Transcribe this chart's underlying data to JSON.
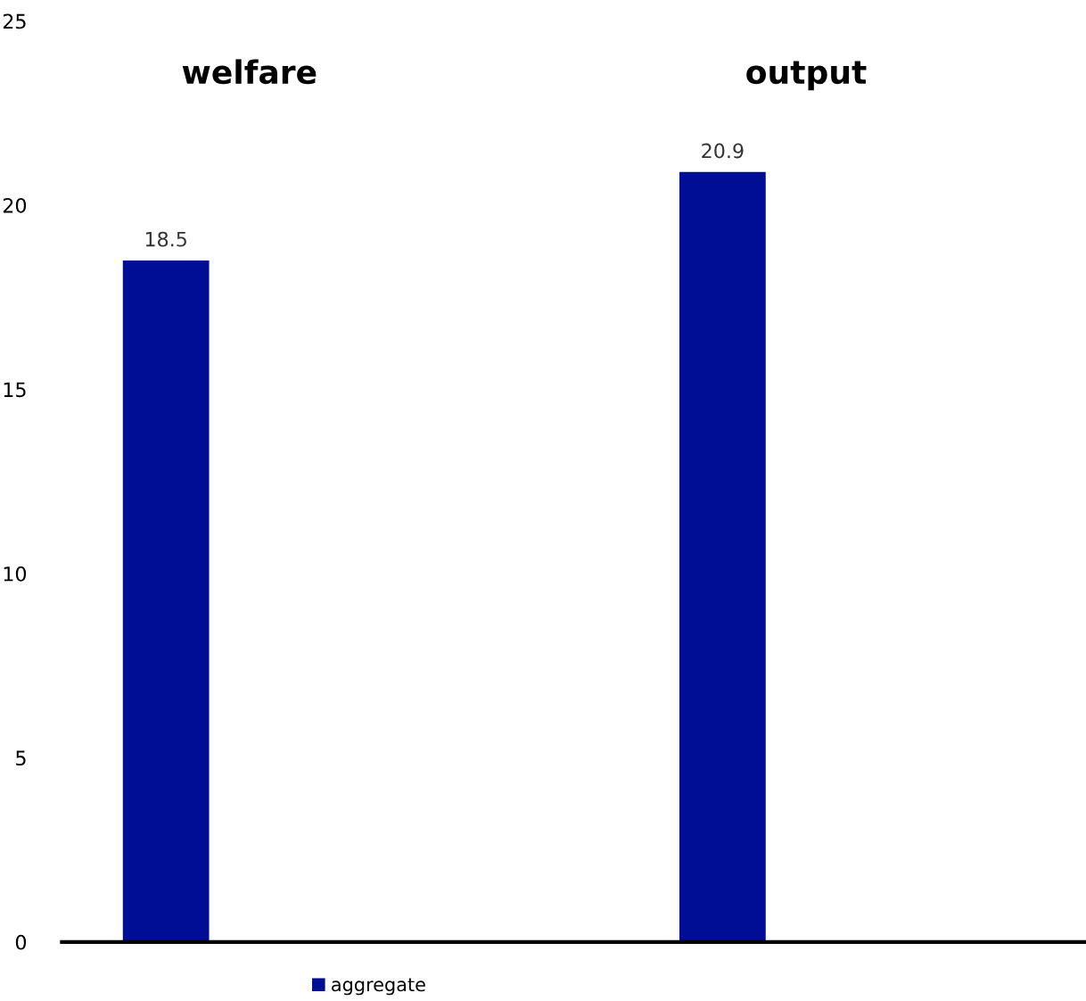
{
  "chart_data": {
    "type": "bar",
    "categories": [
      "welfare",
      "output"
    ],
    "series": [
      {
        "name": "aggregate",
        "color": "#000e96",
        "values": [
          18.5,
          20.9
        ]
      }
    ],
    "ylim": [
      0,
      25
    ],
    "yticks": [
      0,
      5,
      10,
      15,
      20,
      25
    ],
    "data_labels": true,
    "grid": false,
    "legend": "bottom"
  }
}
